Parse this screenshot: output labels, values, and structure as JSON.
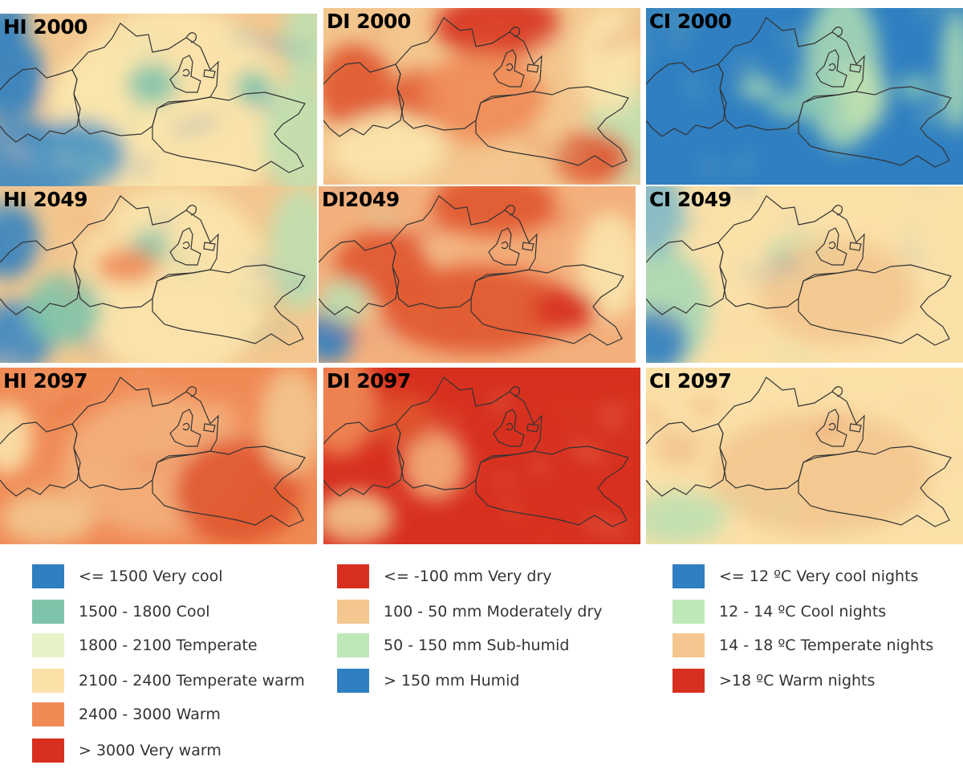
{
  "panels": [
    {
      "id": "hi2000",
      "title": "HI 2000",
      "palette": "hi",
      "base": "#f3c78f",
      "spots": [
        [
          "#fbe5ad",
          0.55,
          0.55,
          0.35,
          0.6
        ],
        [
          "#fbe5ad",
          0.35,
          0.5,
          0.2,
          0.3
        ],
        [
          "#2f7fc1",
          0.02,
          0.35,
          0.12,
          0.25
        ],
        [
          "#3a87c3",
          0.08,
          0.85,
          0.22,
          0.25
        ],
        [
          "#4f98c2",
          0.25,
          0.8,
          0.15,
          0.2
        ],
        [
          "#2f7fc1",
          0.02,
          0.05,
          0.07,
          0.12
        ],
        [
          "#7fc4aa",
          0.48,
          0.4,
          0.08,
          0.12
        ],
        [
          "#bfe0b0",
          0.95,
          0.7,
          0.12,
          0.35
        ],
        [
          "#7fc4aa",
          0.8,
          0.42,
          0.06,
          0.1
        ],
        [
          "#bfe0b0",
          0.97,
          0.15,
          0.08,
          0.25
        ]
      ]
    },
    {
      "id": "di2000",
      "title": "DI 2000",
      "palette": "di",
      "base": "#f3c78f",
      "spots": [
        [
          "#d7301f",
          0.55,
          0.1,
          0.2,
          0.18
        ],
        [
          "#e0552d",
          0.1,
          0.45,
          0.12,
          0.25
        ],
        [
          "#e0552d",
          0.3,
          0.5,
          0.08,
          0.15
        ],
        [
          "#f08a55",
          0.5,
          0.5,
          0.2,
          0.25
        ],
        [
          "#bfe0b0",
          0.95,
          0.7,
          0.12,
          0.3
        ],
        [
          "#fbe5ad",
          0.2,
          0.8,
          0.18,
          0.2
        ],
        [
          "#e0552d",
          0.85,
          0.85,
          0.12,
          0.15
        ],
        [
          "#fbe5ad",
          0.9,
          0.3,
          0.1,
          0.3
        ]
      ]
    },
    {
      "id": "ci2000",
      "title": "CI 2000",
      "palette": "ci",
      "base": "#2f7fc1",
      "spots": [
        [
          "#a8d8b4",
          0.62,
          0.35,
          0.12,
          0.45
        ],
        [
          "#bfe0b0",
          0.68,
          0.5,
          0.08,
          0.2
        ],
        [
          "#8ecbb5",
          0.5,
          0.55,
          0.12,
          0.08
        ],
        [
          "#a8d8b4",
          0.98,
          0.35,
          0.05,
          0.35
        ],
        [
          "#8ecbb5",
          0.85,
          0.45,
          0.06,
          0.06
        ],
        [
          "#a8d8b4",
          0.35,
          0.45,
          0.06,
          0.06
        ]
      ]
    },
    {
      "id": "hi2049",
      "title": "HI 2049",
      "palette": "hi",
      "base": "#f3c78f",
      "spots": [
        [
          "#fbe5ad",
          0.55,
          0.55,
          0.3,
          0.55
        ],
        [
          "#2f7fc1",
          0.02,
          0.3,
          0.1,
          0.22
        ],
        [
          "#3a87c3",
          0.05,
          0.85,
          0.12,
          0.2
        ],
        [
          "#7fc4aa",
          0.2,
          0.7,
          0.12,
          0.2
        ],
        [
          "#bfe0b0",
          0.95,
          0.35,
          0.1,
          0.35
        ],
        [
          "#7fc4aa",
          0.47,
          0.35,
          0.06,
          0.1
        ],
        [
          "#f08a55",
          0.4,
          0.45,
          0.1,
          0.1
        ]
      ]
    },
    {
      "id": "di2049",
      "title": "DI2049",
      "palette": "di",
      "base": "#f3b07c",
      "spots": [
        [
          "#e0552d",
          0.55,
          0.1,
          0.2,
          0.18
        ],
        [
          "#e0552d",
          0.2,
          0.45,
          0.15,
          0.2
        ],
        [
          "#e0552d",
          0.5,
          0.7,
          0.3,
          0.25
        ],
        [
          "#2f7fc1",
          0.03,
          0.85,
          0.08,
          0.15
        ],
        [
          "#bfe0b0",
          0.08,
          0.65,
          0.08,
          0.12
        ],
        [
          "#fbe5ad",
          0.92,
          0.45,
          0.1,
          0.3
        ],
        [
          "#d7301f",
          0.78,
          0.7,
          0.1,
          0.12
        ]
      ]
    },
    {
      "id": "ci2049",
      "title": "CI 2049",
      "palette": "ci",
      "base": "#fbe0a8",
      "spots": [
        [
          "#a8d8b4",
          0.05,
          0.7,
          0.15,
          0.35
        ],
        [
          "#2f7fc1",
          0.03,
          0.88,
          0.1,
          0.18
        ],
        [
          "#7fb8c8",
          0.02,
          0.15,
          0.1,
          0.25
        ],
        [
          "#bfe0b0",
          0.5,
          0.4,
          0.12,
          0.12
        ],
        [
          "#f3c78f",
          0.6,
          0.6,
          0.25,
          0.3
        ]
      ]
    },
    {
      "id": "hi2097",
      "title": "HI 2097",
      "palette": "hi",
      "base": "#f08a55",
      "spots": [
        [
          "#f3b07c",
          0.5,
          0.55,
          0.3,
          0.4
        ],
        [
          "#fbe5ad",
          0.02,
          0.4,
          0.08,
          0.2
        ],
        [
          "#f3c78f",
          0.15,
          0.85,
          0.15,
          0.15
        ],
        [
          "#e0552d",
          0.75,
          0.7,
          0.2,
          0.3
        ],
        [
          "#f3c78f",
          0.92,
          0.3,
          0.1,
          0.3
        ]
      ]
    },
    {
      "id": "di2097",
      "title": "DI 2097",
      "palette": "di",
      "base": "#d7301f",
      "spots": [
        [
          "#f08a55",
          0.05,
          0.2,
          0.12,
          0.3
        ],
        [
          "#f3c78f",
          0.1,
          0.85,
          0.12,
          0.15
        ],
        [
          "#f3b07c",
          0.35,
          0.55,
          0.1,
          0.2
        ],
        [
          "#e0552d",
          0.25,
          0.3,
          0.1,
          0.15
        ]
      ]
    },
    {
      "id": "ci2097",
      "title": "CI 2097",
      "palette": "ci",
      "base": "#fbe0a8",
      "spots": [
        [
          "#f3c78f",
          0.55,
          0.6,
          0.35,
          0.35
        ],
        [
          "#bfe0b0",
          0.1,
          0.85,
          0.15,
          0.15
        ],
        [
          "#f3c78f",
          0.1,
          0.45,
          0.08,
          0.1
        ],
        [
          "#e0552d",
          0.1,
          0.5,
          0.012,
          0.02
        ]
      ]
    }
  ],
  "legends": [
    {
      "id": "hi",
      "items": [
        {
          "color": "#2f7fc1",
          "label": "<= 1500 Very cool"
        },
        {
          "color": "#7fc4aa",
          "label": "1500 - 1800 Cool"
        },
        {
          "color": "#e8f2c8",
          "label": "1800 - 2100 Temperate"
        },
        {
          "color": "#fbe0a8",
          "label": "2100 - 2400 Temperate warm"
        },
        {
          "color": "#f08a55",
          "label": "2400 - 3000 Warm"
        },
        {
          "color": "#d7301f",
          "label": "> 3000 Very warm"
        }
      ]
    },
    {
      "id": "di",
      "items": [
        {
          "color": "#d7301f",
          "label": "<= -100 mm Very dry"
        },
        {
          "color": "#f3c78f",
          "label": "100 - 50 mm Moderately dry"
        },
        {
          "color": "#bfe8b8",
          "label": " 50 - 150 mm Sub-humid"
        },
        {
          "color": "#2f7fc1",
          "label": "> 150 mm Humid"
        }
      ]
    },
    {
      "id": "ci",
      "items": [
        {
          "color": "#2f7fc1",
          "label": "<= 12 ºC Very cool nights"
        },
        {
          "color": "#bfe8b8",
          "label": "12  - 14 ºC Cool nights"
        },
        {
          "color": "#f3c78f",
          "label": "14 -  18 ºC Temperate nights"
        },
        {
          "color": "#d7301f",
          "label": ">18 ºC Warm nights"
        }
      ]
    }
  ]
}
